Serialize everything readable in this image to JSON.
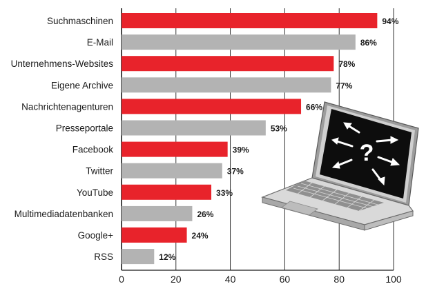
{
  "chart_data": {
    "type": "bar",
    "orientation": "horizontal",
    "categories": [
      "Suchmaschinen",
      "E-Mail",
      "Unternehmens-Websites",
      "Eigene Archive",
      "Nachrichtenagenturen",
      "Presseportale",
      "Facebook",
      "Twitter",
      "YouTube",
      "Multimediadatenbanken",
      "Google+",
      "RSS"
    ],
    "values": [
      94,
      86,
      78,
      77,
      66,
      53,
      39,
      37,
      33,
      26,
      24,
      12
    ],
    "value_labels": [
      "94%",
      "86%",
      "78%",
      "77%",
      "66%",
      "53%",
      "39%",
      "37%",
      "33%",
      "26%",
      "24%",
      "12%"
    ],
    "xlim": [
      0,
      100
    ],
    "xticks": [
      0,
      20,
      40,
      60,
      80,
      100
    ],
    "xtick_labels": [
      "0",
      "20",
      "40",
      "60",
      "80",
      "100"
    ],
    "grid": true,
    "title": "",
    "xlabel": "",
    "ylabel": "",
    "colors": {
      "primary": "#e8232b",
      "secondary": "#b3b3b3",
      "grid": "#1a1a1a"
    }
  },
  "illustration": {
    "icon": "laptop-question-icon",
    "screen_text": "?"
  }
}
